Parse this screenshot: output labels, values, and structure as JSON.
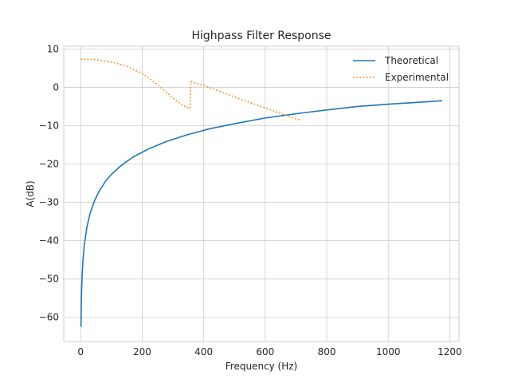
{
  "chart_data": {
    "type": "line",
    "title": "Highpass Filter Response",
    "xlabel": "Frequency (Hz)",
    "ylabel": "A(dB)",
    "xlim": [
      -55,
      1230
    ],
    "ylim": [
      -66.3,
      10.7
    ],
    "xticks": [
      0,
      200,
      400,
      600,
      800,
      1000,
      1200
    ],
    "xtick_labels": [
      "0",
      "200",
      "400",
      "600",
      "800",
      "1000",
      "1200"
    ],
    "yticks": [
      10,
      0,
      -10,
      -20,
      -30,
      -40,
      -50,
      -60
    ],
    "ytick_labels": [
      "10",
      "0",
      "−10",
      "−20",
      "−30",
      "−40",
      "−50",
      "−60"
    ],
    "grid": true,
    "legend_position": "top-right",
    "series": [
      {
        "name": "Theoretical",
        "style": "solid",
        "color": "#1f77b4",
        "x": [
          1,
          2,
          3,
          5,
          8,
          12,
          20,
          30,
          45,
          60,
          80,
          100,
          130,
          170,
          220,
          280,
          350,
          420,
          500,
          600,
          700,
          800,
          900,
          1000,
          1100,
          1175
        ],
        "y": [
          -62.5,
          -56.5,
          -53,
          -48.6,
          -44.5,
          -41,
          -36.6,
          -33,
          -29.6,
          -27.1,
          -24.6,
          -22.7,
          -20.5,
          -18.2,
          -16.1,
          -14.1,
          -12.3,
          -10.8,
          -9.5,
          -8.0,
          -6.9,
          -5.9,
          -5.0,
          -4.4,
          -3.9,
          -3.5
        ]
      },
      {
        "name": "Experimental",
        "style": "dotted",
        "color": "#ff7f0e",
        "x": [
          0,
          50,
          100,
          150,
          200,
          250,
          300,
          330,
          355,
          358,
          400,
          500,
          600,
          700,
          715
        ],
        "y": [
          7.4,
          7.2,
          6.6,
          5.5,
          3.6,
          0.7,
          -2.8,
          -4.6,
          -5.6,
          1.5,
          0.5,
          -2.5,
          -5.4,
          -8.2,
          -8.5
        ]
      }
    ]
  }
}
